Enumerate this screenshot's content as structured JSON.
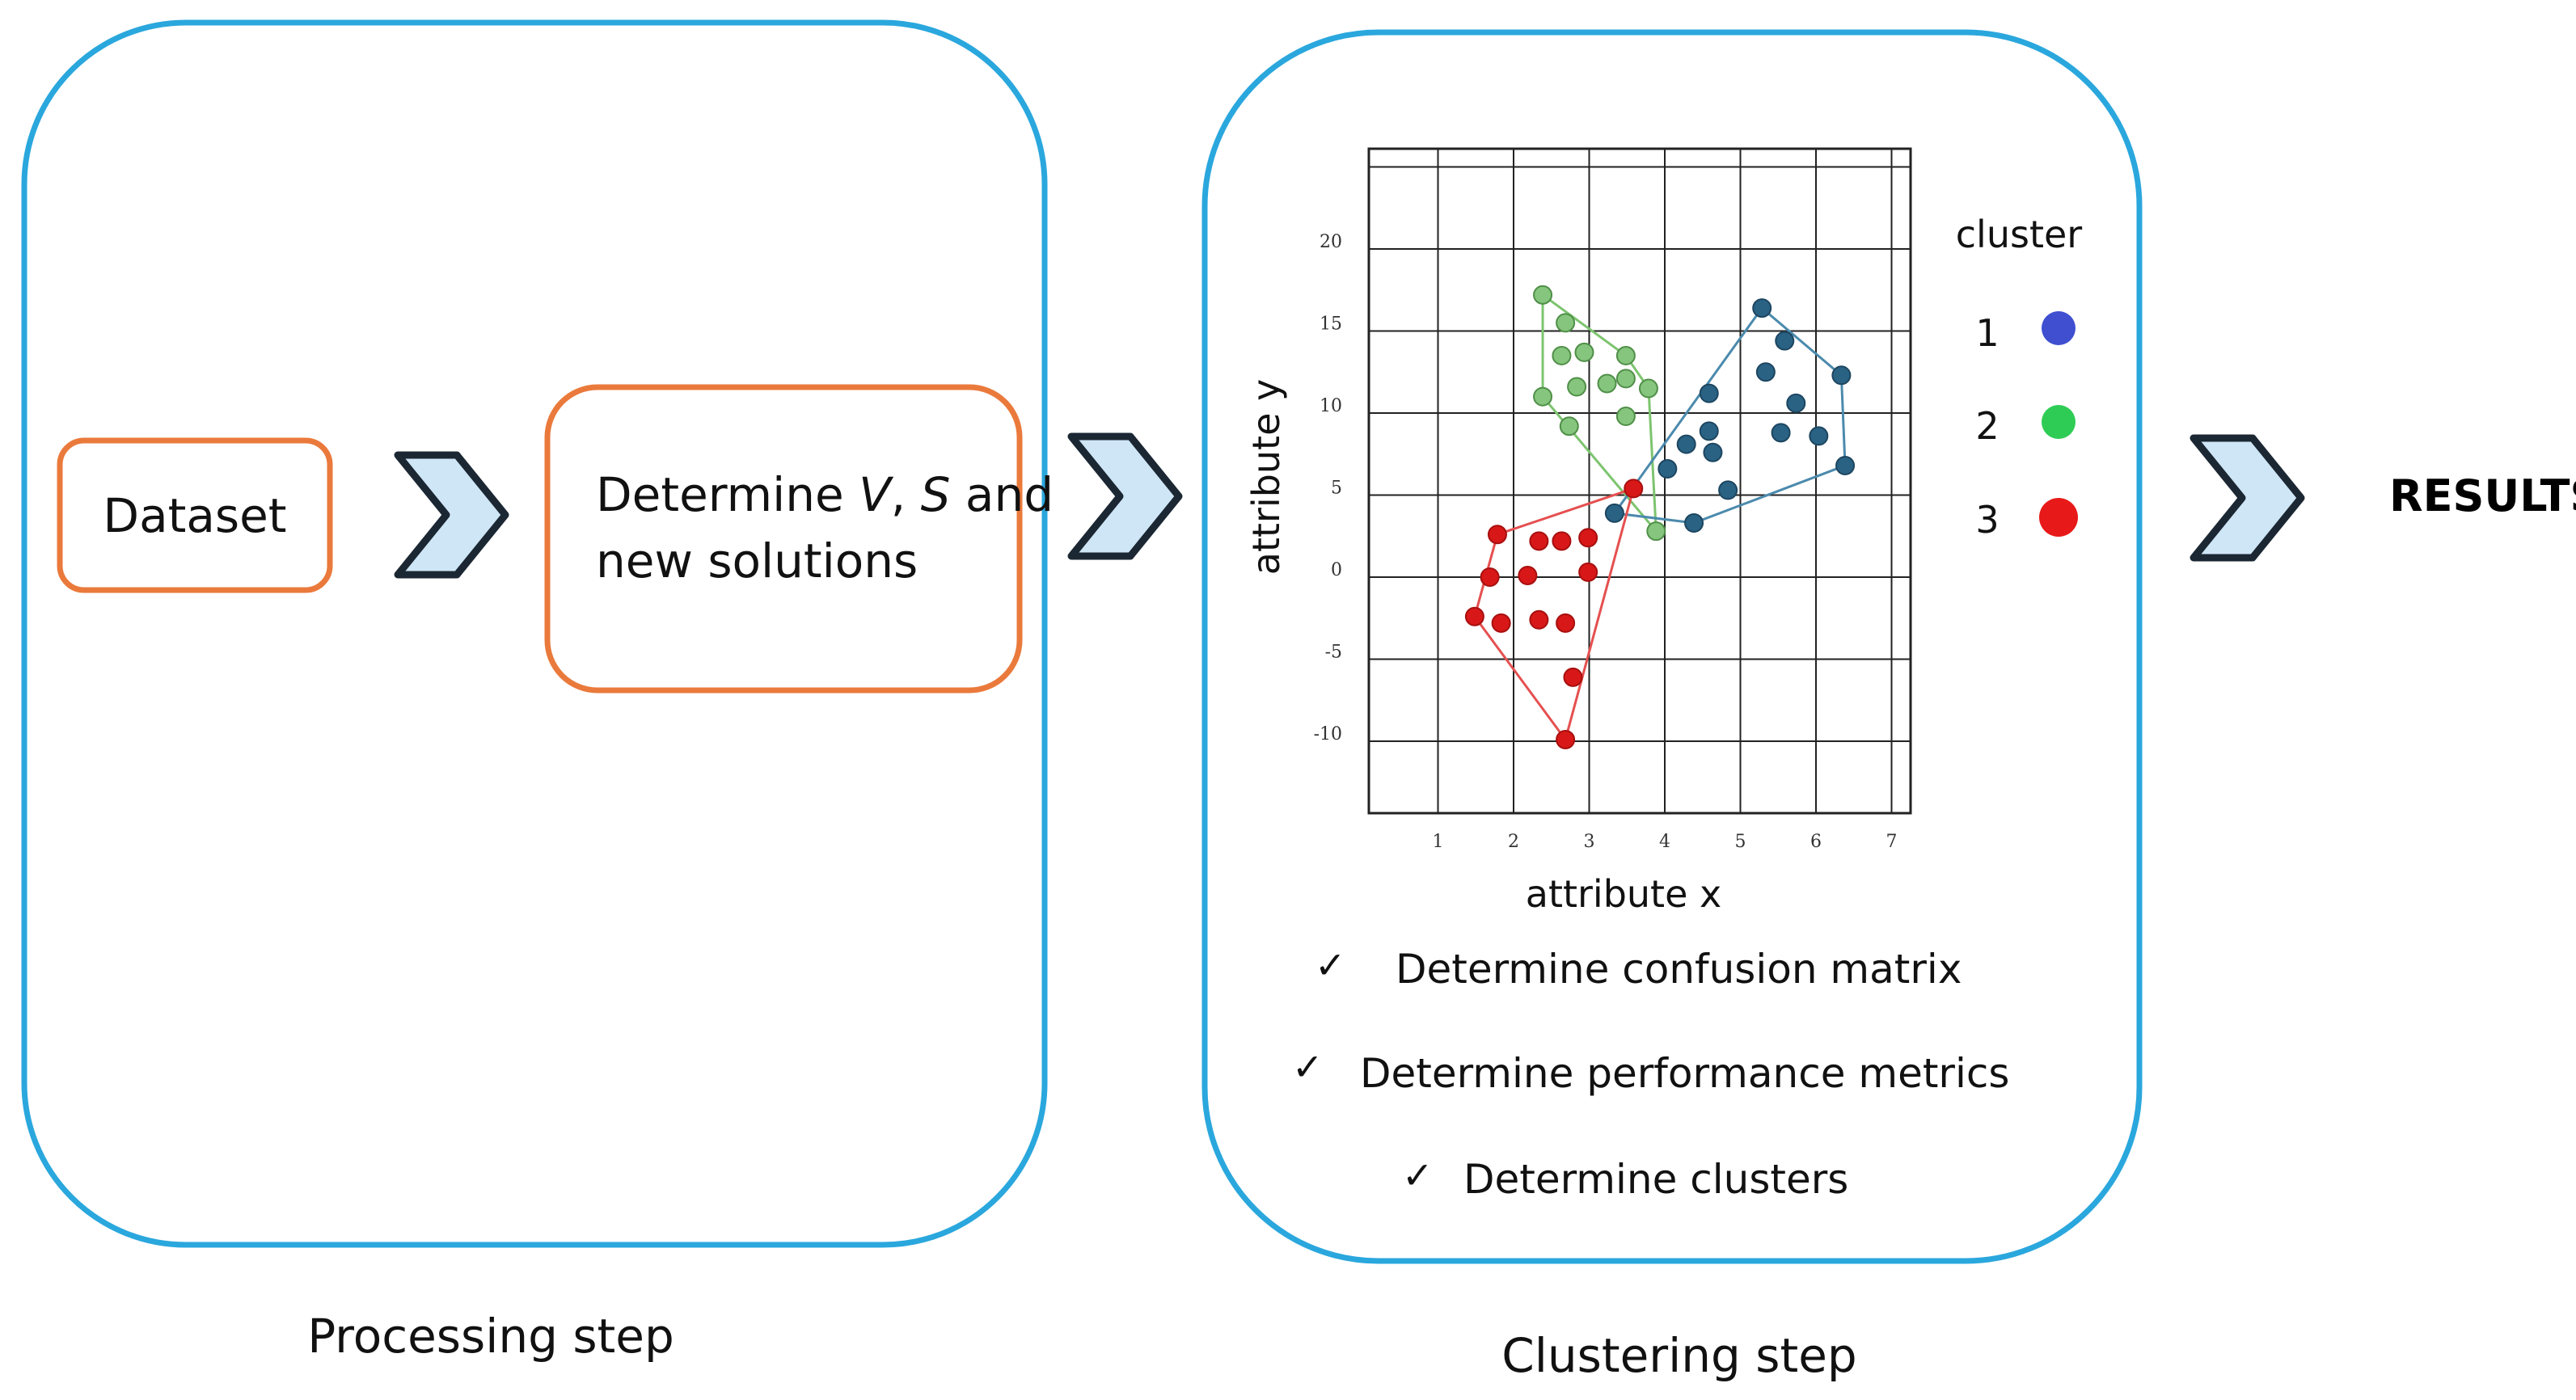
{
  "processing": {
    "dataset_label": "Dataset",
    "determine_line1_prefix": "Determine ",
    "determine_v": "V",
    "determine_sep": ", ",
    "determine_s": "S",
    "determine_line1_suffix": " and",
    "determine_line2": "new solutions",
    "caption": "Processing step"
  },
  "clustering": {
    "caption": "Clustering step",
    "checks": [
      "Determine confusion matrix",
      "Determine performance metrics",
      "Determine clusters"
    ],
    "check_mark": "✓"
  },
  "results_label": "RESULTS",
  "colors": {
    "panel_border": "#2aa7dd",
    "box_border": "#ea7a3c",
    "chevron_fill": "#cfe6f6",
    "chevron_stroke": "#1b2733",
    "cluster_1": "#3f4fd0",
    "cluster_2": "#2ecc55",
    "cluster_3": "#e81919",
    "pts_blue": "#2a6284",
    "pts_green": "#86c57e",
    "pts_red": "#d81818",
    "hull_green": "#7dc46f",
    "hull_blue": "#4b8aad",
    "hull_red": "#e55050"
  },
  "chart_data": {
    "type": "scatter",
    "xlabel": "attribute x",
    "ylabel": "attribute y",
    "xlim": [
      0,
      7
    ],
    "ylim": [
      -15,
      27
    ],
    "x_ticks": [
      1,
      2,
      3,
      4,
      5,
      6,
      7
    ],
    "y_ticks": [
      20,
      15,
      10,
      5,
      0,
      -5,
      -10
    ],
    "grid": true,
    "legend": {
      "title": "cluster",
      "entries": [
        "1",
        "2",
        "3"
      ],
      "placement": "right"
    },
    "series": [
      {
        "name": "green",
        "x": [
          2.3,
          2.6,
          2.85,
          3.4,
          2.55,
          2.75,
          3.15,
          3.4,
          3.7,
          2.3,
          2.65,
          3.4,
          3.8
        ],
        "y": [
          17.2,
          15.5,
          13.7,
          13.5,
          13.5,
          11.6,
          11.8,
          12.1,
          11.5,
          11.0,
          9.2,
          9.8,
          2.8
        ]
      },
      {
        "name": "blue",
        "x": [
          5.2,
          5.5,
          5.25,
          6.25,
          4.5,
          5.65,
          4.5,
          4.2,
          4.55,
          5.45,
          5.95,
          3.95,
          6.3,
          4.75,
          3.25,
          4.3
        ],
        "y": [
          16.4,
          14.4,
          12.5,
          12.3,
          11.2,
          10.6,
          8.9,
          8.1,
          7.6,
          8.8,
          8.6,
          6.6,
          6.8,
          5.3,
          3.9,
          3.3
        ]
      },
      {
        "name": "red",
        "x": [
          1.7,
          2.25,
          2.55,
          2.9,
          1.6,
          2.1,
          3.5,
          1.4,
          1.75,
          2.25,
          2.6,
          2.9,
          2.7,
          2.6
        ],
        "y": [
          2.6,
          2.2,
          2.2,
          2.4,
          0.0,
          0.1,
          5.4,
          -2.4,
          -2.8,
          -2.6,
          -2.8,
          0.3,
          -6.1,
          -9.9
        ]
      }
    ]
  }
}
